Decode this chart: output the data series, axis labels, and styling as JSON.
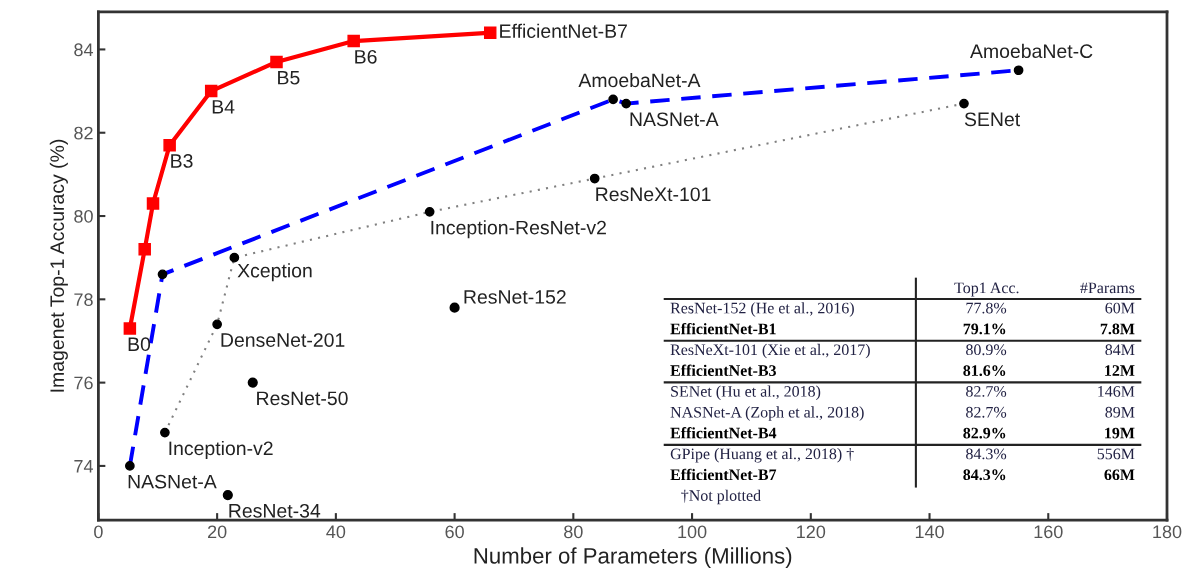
{
  "chart_data": {
    "type": "line",
    "xlabel": "Number of Parameters (Millions)",
    "ylabel": "Imagenet Top-1 Accuracy (%)",
    "xlim": [
      0,
      180
    ],
    "xticks": [
      0,
      20,
      40,
      60,
      80,
      100,
      120,
      140,
      160,
      180
    ],
    "ylim": [
      72.7,
      84.9
    ],
    "yticks": [
      74,
      76,
      78,
      80,
      82,
      84
    ],
    "grid": false,
    "legend": false,
    "series": [
      {
        "color": "#ff0000",
        "marker": "square",
        "line_style": "solid",
        "x": [
          5.3,
          7.8,
          9.2,
          12,
          19,
          30,
          43,
          66
        ],
        "values": [
          77.3,
          79.2,
          80.3,
          81.7,
          83.0,
          83.7,
          84.2,
          84.4
        ]
      },
      {
        "color": "#0000ff",
        "marker": "circle",
        "line_style": "dashed",
        "x": [
          5.3,
          10.8,
          86.7,
          88.9,
          155
        ],
        "values": [
          74.0,
          78.6,
          82.8,
          82.7,
          83.5
        ]
      },
      {
        "color": "#808080",
        "marker": "circle",
        "line_style": "dotted",
        "x": [
          11.2,
          20,
          22.9,
          55.8,
          83.6,
          145.8
        ],
        "values": [
          74.8,
          77.4,
          79.0,
          80.1,
          80.9,
          82.7
        ]
      },
      {
        "type": "scatter",
        "color": "#000000",
        "marker": "circle",
        "x": [
          60,
          26,
          21.8
        ],
        "values": [
          77.8,
          76.0,
          73.3
        ]
      }
    ],
    "annotations": [
      {
        "text": "EfficientNet-B7",
        "x": 66,
        "y": 84.4
      },
      {
        "text": "B6",
        "x": 43,
        "y": 84.2
      },
      {
        "text": "B5",
        "x": 30,
        "y": 83.7
      },
      {
        "text": "B4",
        "x": 19,
        "y": 83.0
      },
      {
        "text": "B3",
        "x": 12,
        "y": 81.7
      },
      {
        "text": "B0",
        "x": 5.3,
        "y": 77.3
      },
      {
        "text": "AmoebaNet-A",
        "x": 86.7,
        "y": 82.8
      },
      {
        "text": "NASNet-A",
        "x": 88.9,
        "y": 82.7
      },
      {
        "text": "AmoebaNet-C",
        "x": 155,
        "y": 83.5
      },
      {
        "text": "SENet",
        "x": 145.8,
        "y": 82.7
      },
      {
        "text": "ResNeXt-101",
        "x": 83.6,
        "y": 80.9
      },
      {
        "text": "Inception-ResNet-v2",
        "x": 55.8,
        "y": 80.1
      },
      {
        "text": "Xception",
        "x": 22.9,
        "y": 79.0
      },
      {
        "text": "ResNet-152",
        "x": 60,
        "y": 77.8
      },
      {
        "text": "DenseNet-201",
        "x": 20,
        "y": 77.4
      },
      {
        "text": "ResNet-50",
        "x": 26,
        "y": 76.0
      },
      {
        "text": "Inception-v2",
        "x": 11.2,
        "y": 74.8
      },
      {
        "text": "NASNet-A",
        "x": 5.3,
        "y": 74.0
      },
      {
        "text": "ResNet-34",
        "x": 21.8,
        "y": 73.3
      },
      "Top1 Acc.",
      "#Params",
      "ResNet-152 (He et al., 2016)",
      "77.8%",
      "60M",
      "EfficientNet-B1",
      "79.1%",
      "7.8M",
      "ResNeXt-101 (Xie et al., 2017)",
      "80.9%",
      "84M",
      "EfficientNet-B3",
      "81.6%",
      "12M",
      "SENet (Hu et al., 2018)",
      "82.7%",
      "146M",
      "NASNet-A (Zoph et al., 2018)",
      "82.7%",
      "89M",
      "EfficientNet-B4",
      "82.9%",
      "19M",
      "GPipe (Huang et al., 2018) †",
      "84.3%",
      "556M",
      "EfficientNet-B7",
      "84.3%",
      "66M",
      "†Not plotted"
    ]
  }
}
